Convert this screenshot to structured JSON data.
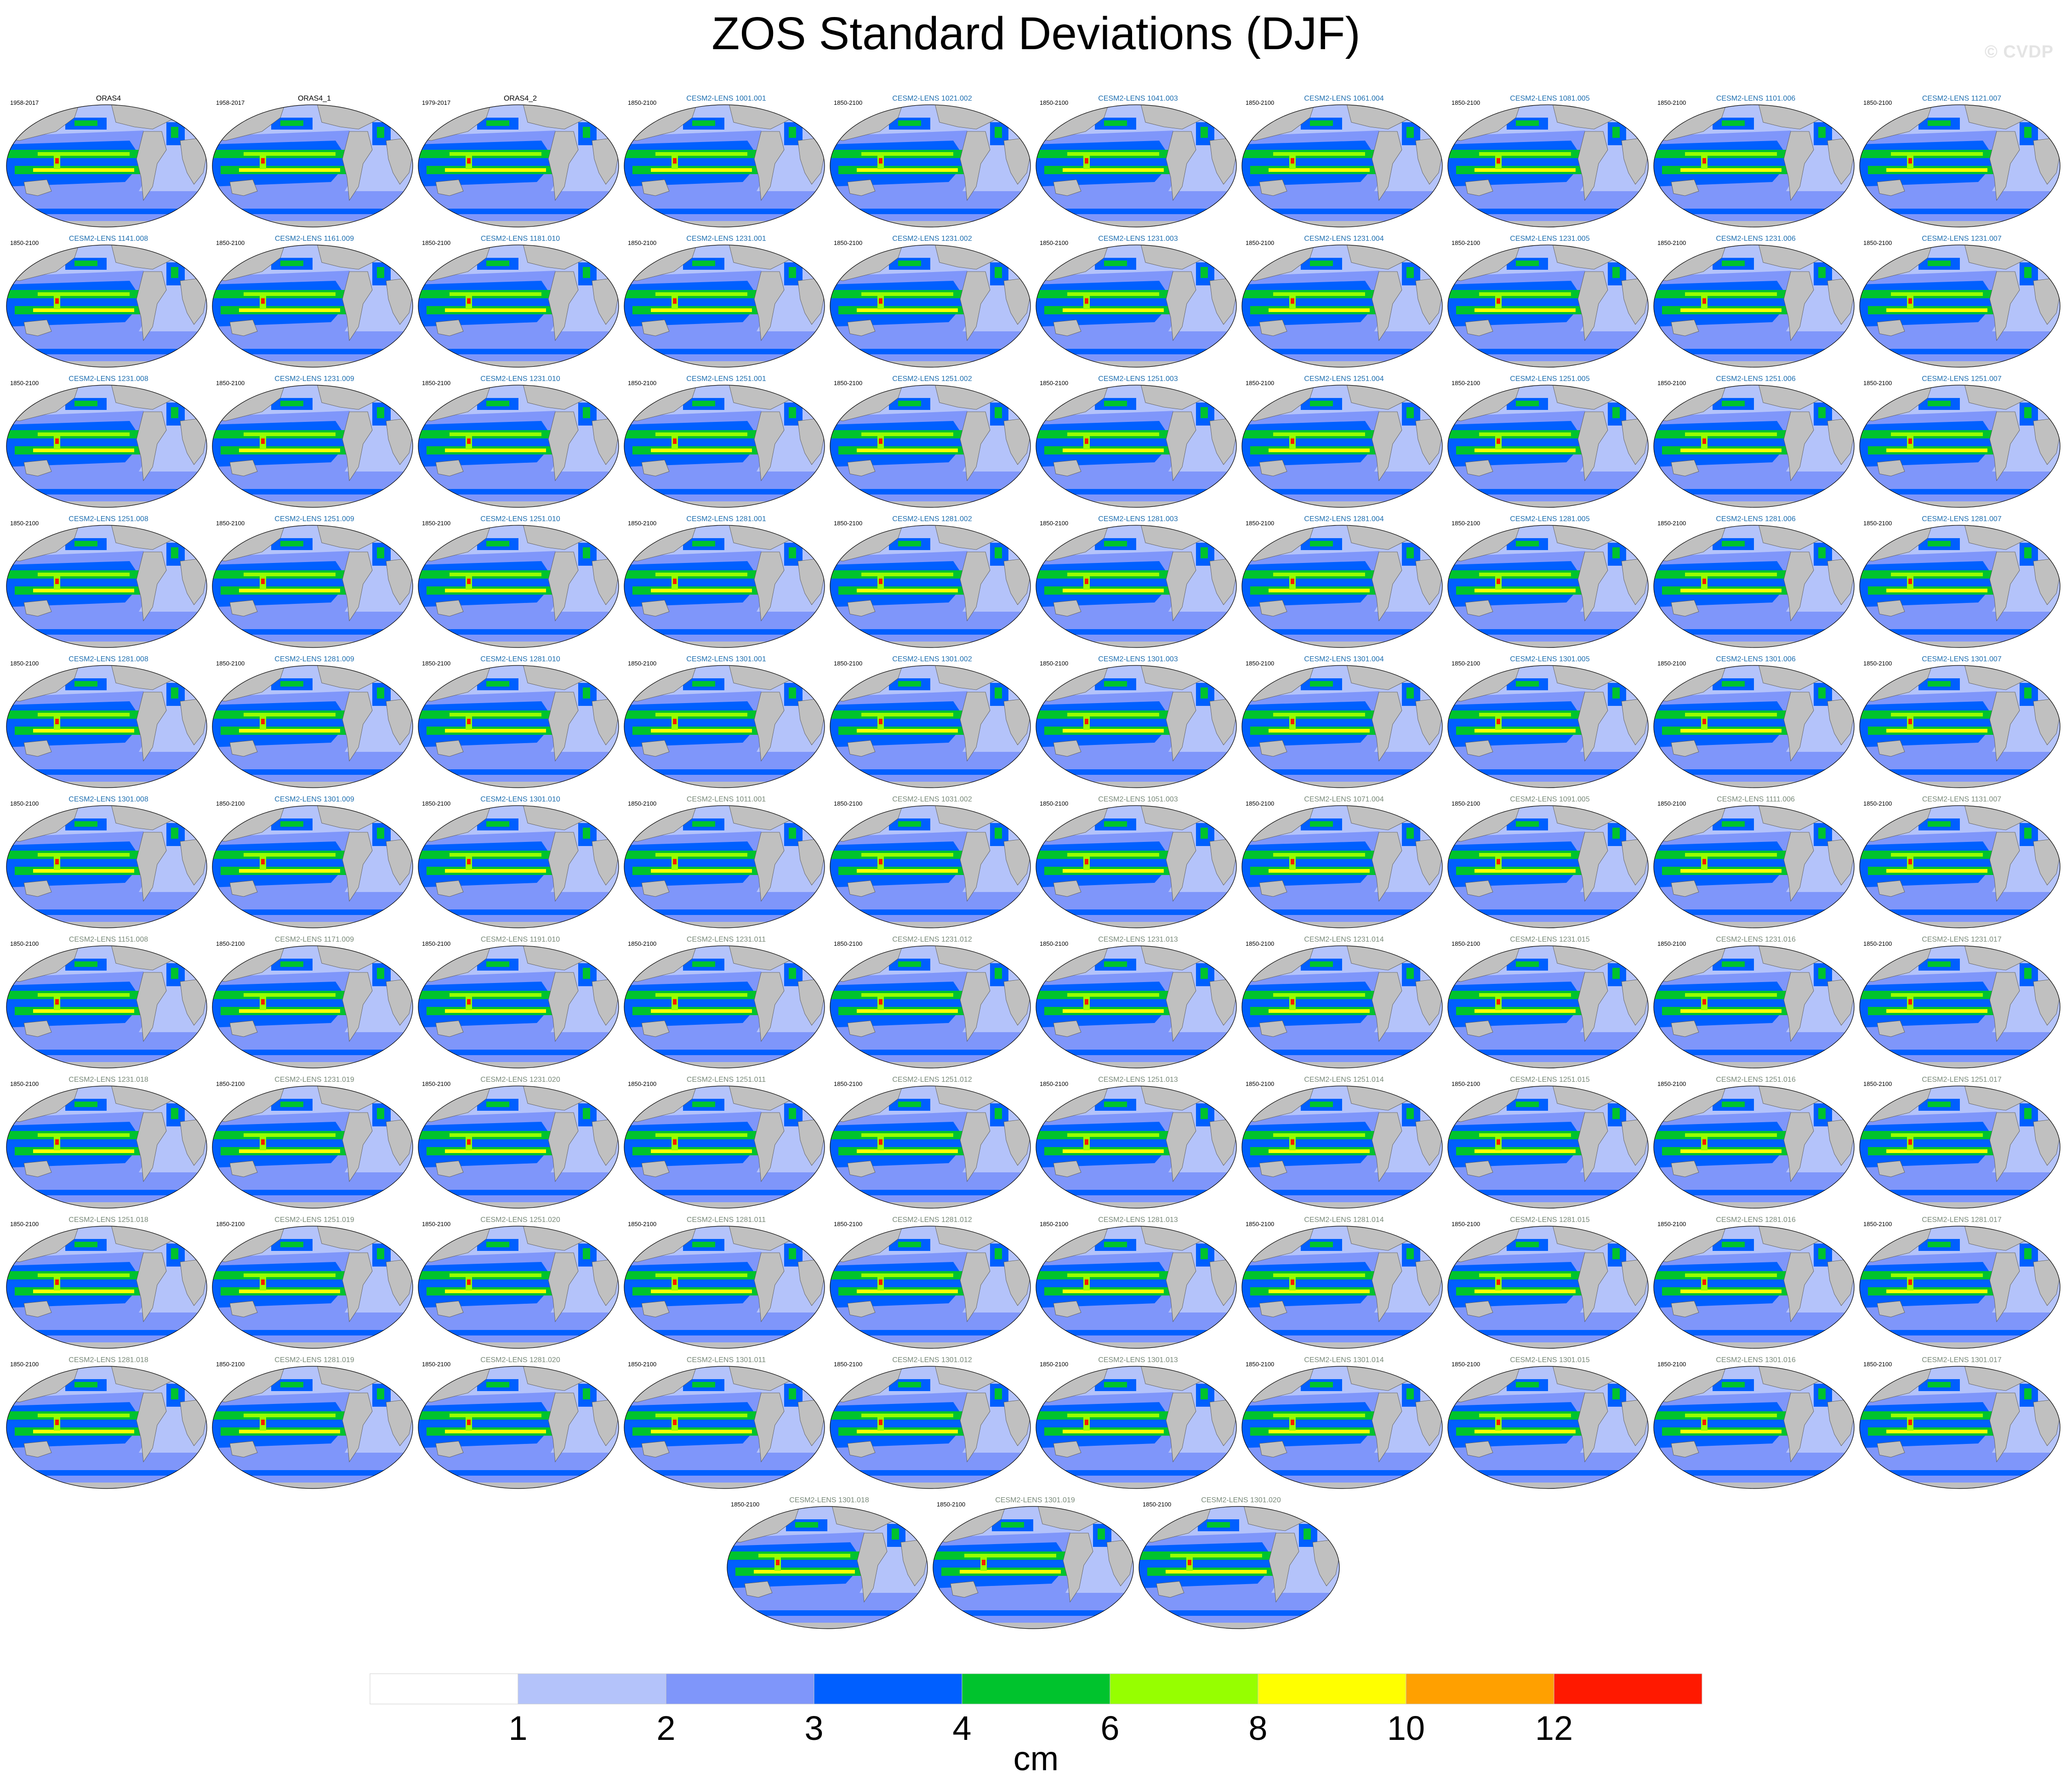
{
  "title": "ZOS Standard Deviations (DJF)",
  "watermark": "© CVDP",
  "chart_data": {
    "type": "heatmap",
    "title": "ZOS Standard Deviations (DJF)",
    "projection": "global map panels",
    "units": "cm",
    "colorbar": {
      "label": "cm",
      "levels": [
        1,
        2,
        3,
        4,
        6,
        8,
        10,
        12
      ],
      "colors": [
        "#ffffff",
        "#b4c3fa",
        "#7f96fa",
        "#005fff",
        "#00c32d",
        "#96ff00",
        "#ffff00",
        "#ffa000",
        "#ff1900"
      ]
    },
    "land_color": "#c0c0c0",
    "panels": [
      {
        "title": "ORAS4",
        "period": "1958-2017"
      },
      {
        "title": "ORAS4_1",
        "period": "1958-2017"
      },
      {
        "title": "ORAS4_2",
        "period": "1979-2017"
      },
      {
        "title": "CESM2-LENS 1001.001",
        "period": "1850-2100"
      },
      {
        "title": "CESM2-LENS 1021.002",
        "period": "1850-2100"
      },
      {
        "title": "CESM2-LENS 1041.003",
        "period": "1850-2100"
      },
      {
        "title": "CESM2-LENS 1061.004",
        "period": "1850-2100"
      },
      {
        "title": "CESM2-LENS 1081.005",
        "period": "1850-2100"
      },
      {
        "title": "CESM2-LENS 1101.006",
        "period": "1850-2100"
      },
      {
        "title": "CESM2-LENS 1121.007",
        "period": "1850-2100"
      },
      {
        "title": "CESM2-LENS 1141.008",
        "period": "1850-2100"
      },
      {
        "title": "CESM2-LENS 1161.009",
        "period": "1850-2100"
      },
      {
        "title": "CESM2-LENS 1181.010",
        "period": "1850-2100"
      },
      {
        "title": "CESM2-LENS 1231.001",
        "period": "1850-2100"
      },
      {
        "title": "CESM2-LENS 1231.002",
        "period": "1850-2100"
      },
      {
        "title": "CESM2-LENS 1231.003",
        "period": "1850-2100"
      },
      {
        "title": "CESM2-LENS 1231.004",
        "period": "1850-2100"
      },
      {
        "title": "CESM2-LENS 1231.005",
        "period": "1850-2100"
      },
      {
        "title": "CESM2-LENS 1231.006",
        "period": "1850-2100"
      },
      {
        "title": "CESM2-LENS 1231.007",
        "period": "1850-2100"
      },
      {
        "title": "CESM2-LENS 1231.008",
        "period": "1850-2100"
      },
      {
        "title": "CESM2-LENS 1231.009",
        "period": "1850-2100"
      },
      {
        "title": "CESM2-LENS 1231.010",
        "period": "1850-2100"
      },
      {
        "title": "CESM2-LENS 1251.001",
        "period": "1850-2100"
      },
      {
        "title": "CESM2-LENS 1251.002",
        "period": "1850-2100"
      },
      {
        "title": "CESM2-LENS 1251.003",
        "period": "1850-2100"
      },
      {
        "title": "CESM2-LENS 1251.004",
        "period": "1850-2100"
      },
      {
        "title": "CESM2-LENS 1251.005",
        "period": "1850-2100"
      },
      {
        "title": "CESM2-LENS 1251.006",
        "period": "1850-2100"
      },
      {
        "title": "CESM2-LENS 1251.007",
        "period": "1850-2100"
      },
      {
        "title": "CESM2-LENS 1251.008",
        "period": "1850-2100"
      },
      {
        "title": "CESM2-LENS 1251.009",
        "period": "1850-2100"
      },
      {
        "title": "CESM2-LENS 1251.010",
        "period": "1850-2100"
      },
      {
        "title": "CESM2-LENS 1281.001",
        "period": "1850-2100"
      },
      {
        "title": "CESM2-LENS 1281.002",
        "period": "1850-2100"
      },
      {
        "title": "CESM2-LENS 1281.003",
        "period": "1850-2100"
      },
      {
        "title": "CESM2-LENS 1281.004",
        "period": "1850-2100"
      },
      {
        "title": "CESM2-LENS 1281.005",
        "period": "1850-2100"
      },
      {
        "title": "CESM2-LENS 1281.006",
        "period": "1850-2100"
      },
      {
        "title": "CESM2-LENS 1281.007",
        "period": "1850-2100"
      },
      {
        "title": "CESM2-LENS 1281.008",
        "period": "1850-2100"
      },
      {
        "title": "CESM2-LENS 1281.009",
        "period": "1850-2100"
      },
      {
        "title": "CESM2-LENS 1281.010",
        "period": "1850-2100"
      },
      {
        "title": "CESM2-LENS 1301.001",
        "period": "1850-2100"
      },
      {
        "title": "CESM2-LENS 1301.002",
        "period": "1850-2100"
      },
      {
        "title": "CESM2-LENS 1301.003",
        "period": "1850-2100"
      },
      {
        "title": "CESM2-LENS 1301.004",
        "period": "1850-2100"
      },
      {
        "title": "CESM2-LENS 1301.005",
        "period": "1850-2100"
      },
      {
        "title": "CESM2-LENS 1301.006",
        "period": "1850-2100"
      },
      {
        "title": "CESM2-LENS 1301.007",
        "period": "1850-2100"
      },
      {
        "title": "CESM2-LENS 1301.008",
        "period": "1850-2100"
      },
      {
        "title": "CESM2-LENS 1301.009",
        "period": "1850-2100"
      },
      {
        "title": "CESM2-LENS 1301.010",
        "period": "1850-2100"
      },
      {
        "title": "CESM2-LENS 1011.001",
        "period": "1850-2100"
      },
      {
        "title": "CESM2-LENS 1031.002",
        "period": "1850-2100"
      },
      {
        "title": "CESM2-LENS 1051.003",
        "period": "1850-2100"
      },
      {
        "title": "CESM2-LENS 1071.004",
        "period": "1850-2100"
      },
      {
        "title": "CESM2-LENS 1091.005",
        "period": "1850-2100"
      },
      {
        "title": "CESM2-LENS 1111.006",
        "period": "1850-2100"
      },
      {
        "title": "CESM2-LENS 1131.007",
        "period": "1850-2100"
      },
      {
        "title": "CESM2-LENS 1151.008",
        "period": "1850-2100"
      },
      {
        "title": "CESM2-LENS 1171.009",
        "period": "1850-2100"
      },
      {
        "title": "CESM2-LENS 1191.010",
        "period": "1850-2100"
      },
      {
        "title": "CESM2-LENS 1231.011",
        "period": "1850-2100"
      },
      {
        "title": "CESM2-LENS 1231.012",
        "period": "1850-2100"
      },
      {
        "title": "CESM2-LENS 1231.013",
        "period": "1850-2100"
      },
      {
        "title": "CESM2-LENS 1231.014",
        "period": "1850-2100"
      },
      {
        "title": "CESM2-LENS 1231.015",
        "period": "1850-2100"
      },
      {
        "title": "CESM2-LENS 1231.016",
        "period": "1850-2100"
      },
      {
        "title": "CESM2-LENS 1231.017",
        "period": "1850-2100"
      },
      {
        "title": "CESM2-LENS 1231.018",
        "period": "1850-2100"
      },
      {
        "title": "CESM2-LENS 1231.019",
        "period": "1850-2100"
      },
      {
        "title": "CESM2-LENS 1231.020",
        "period": "1850-2100"
      },
      {
        "title": "CESM2-LENS 1251.011",
        "period": "1850-2100"
      },
      {
        "title": "CESM2-LENS 1251.012",
        "period": "1850-2100"
      },
      {
        "title": "CESM2-LENS 1251.013",
        "period": "1850-2100"
      },
      {
        "title": "CESM2-LENS 1251.014",
        "period": "1850-2100"
      },
      {
        "title": "CESM2-LENS 1251.015",
        "period": "1850-2100"
      },
      {
        "title": "CESM2-LENS 1251.016",
        "period": "1850-2100"
      },
      {
        "title": "CESM2-LENS 1251.017",
        "period": "1850-2100"
      },
      {
        "title": "CESM2-LENS 1251.018",
        "period": "1850-2100"
      },
      {
        "title": "CESM2-LENS 1251.019",
        "period": "1850-2100"
      },
      {
        "title": "CESM2-LENS 1251.020",
        "period": "1850-2100"
      },
      {
        "title": "CESM2-LENS 1281.011",
        "period": "1850-2100"
      },
      {
        "title": "CESM2-LENS 1281.012",
        "period": "1850-2100"
      },
      {
        "title": "CESM2-LENS 1281.013",
        "period": "1850-2100"
      },
      {
        "title": "CESM2-LENS 1281.014",
        "period": "1850-2100"
      },
      {
        "title": "CESM2-LENS 1281.015",
        "period": "1850-2100"
      },
      {
        "title": "CESM2-LENS 1281.016",
        "period": "1850-2100"
      },
      {
        "title": "CESM2-LENS 1281.017",
        "period": "1850-2100"
      },
      {
        "title": "CESM2-LENS 1281.018",
        "period": "1850-2100"
      },
      {
        "title": "CESM2-LENS 1281.019",
        "period": "1850-2100"
      },
      {
        "title": "CESM2-LENS 1281.020",
        "period": "1850-2100"
      },
      {
        "title": "CESM2-LENS 1301.011",
        "period": "1850-2100"
      },
      {
        "title": "CESM2-LENS 1301.012",
        "period": "1850-2100"
      },
      {
        "title": "CESM2-LENS 1301.013",
        "period": "1850-2100"
      },
      {
        "title": "CESM2-LENS 1301.014",
        "period": "1850-2100"
      },
      {
        "title": "CESM2-LENS 1301.015",
        "period": "1850-2100"
      },
      {
        "title": "CESM2-LENS 1301.016",
        "period": "1850-2100"
      },
      {
        "title": "CESM2-LENS 1301.017",
        "period": "1850-2100"
      },
      {
        "title": "CESM2-LENS 1301.018",
        "period": "1850-2100"
      },
      {
        "title": "CESM2-LENS 1301.019",
        "period": "1850-2100"
      },
      {
        "title": "CESM2-LENS 1301.020",
        "period": "1850-2100"
      }
    ]
  }
}
